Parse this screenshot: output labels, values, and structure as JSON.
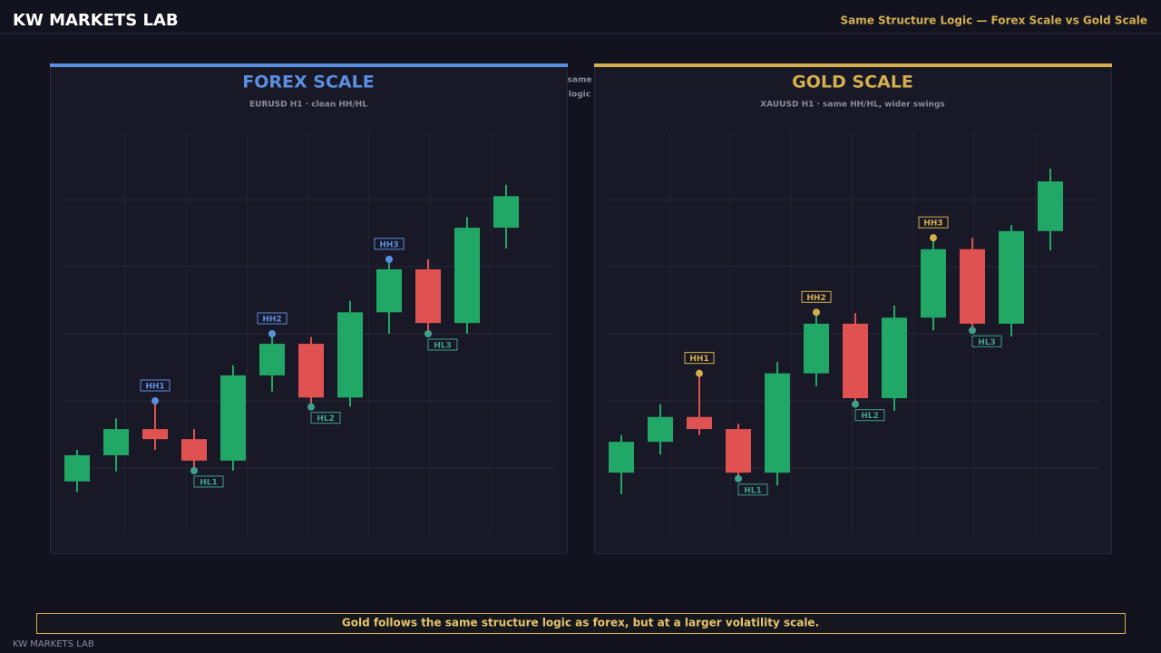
{
  "header": {
    "title": "KW MARKETS LAB",
    "subtitle": "Same Structure Logic — Forex Scale vs Gold Scale"
  },
  "connector": [
    "same",
    "logic"
  ],
  "footer": {
    "note": "Gold follows the same structure logic as forex, but at a larger volatility scale.",
    "brand": "KW MARKETS LAB"
  },
  "chart_data": [
    {
      "type": "candlestick",
      "title": "FOREX SCALE",
      "subtitle": "EURUSD H1 · clean HH/HL",
      "color": "#5b8ee0",
      "up_color": "#22a866",
      "down_color": "#e05252",
      "grid": true,
      "ylim": [
        0,
        6
      ],
      "yticks": [
        1,
        2,
        3,
        4,
        5
      ],
      "open": [
        0.8,
        1.19,
        1.58,
        1.43,
        1.11,
        2.38,
        2.85,
        2.05,
        3.32,
        3.96,
        3.16,
        4.58
      ],
      "high": [
        1.27,
        1.74,
        2.0,
        1.58,
        2.53,
        3.0,
        2.95,
        3.49,
        4.11,
        4.11,
        4.74,
        5.22
      ],
      "low": [
        0.64,
        0.95,
        1.27,
        0.96,
        0.96,
        2.14,
        1.91,
        1.91,
        3.0,
        3.0,
        3.0,
        4.27
      ],
      "close": [
        1.19,
        1.58,
        1.43,
        1.11,
        2.38,
        2.85,
        2.05,
        3.32,
        3.96,
        3.16,
        4.58,
        5.05
      ],
      "annotations": [
        {
          "label": "HH1",
          "index": 2,
          "at": "high"
        },
        {
          "label": "HL1",
          "index": 3,
          "at": "low"
        },
        {
          "label": "HH2",
          "index": 5,
          "at": "high"
        },
        {
          "label": "HL2",
          "index": 6,
          "at": "low"
        },
        {
          "label": "HH3",
          "index": 8,
          "at": "high"
        },
        {
          "label": "HL3",
          "index": 9,
          "at": "low"
        }
      ]
    },
    {
      "type": "candlestick",
      "title": "GOLD SCALE",
      "subtitle": "XAUUSD H1 · same HH/HL, wider swings",
      "color": "#d4af4f",
      "up_color": "#22a866",
      "down_color": "#e05252",
      "grid": true,
      "ylim": [
        0,
        6
      ],
      "yticks": [
        1,
        2,
        3,
        4,
        5
      ],
      "open": [
        0.93,
        1.39,
        1.76,
        1.58,
        0.93,
        2.41,
        3.15,
        2.04,
        3.24,
        4.26,
        3.15,
        4.53
      ],
      "high": [
        1.49,
        1.95,
        2.41,
        1.66,
        2.58,
        3.32,
        3.31,
        3.42,
        4.43,
        4.43,
        4.62,
        5.46
      ],
      "low": [
        0.61,
        1.2,
        1.49,
        0.84,
        0.74,
        2.22,
        1.95,
        1.85,
        3.05,
        3.05,
        2.96,
        4.24
      ],
      "close": [
        1.39,
        1.76,
        1.58,
        0.93,
        2.41,
        3.15,
        2.04,
        3.24,
        4.26,
        3.15,
        4.53,
        5.27
      ],
      "annotations": [
        {
          "label": "HH1",
          "index": 2,
          "at": "high"
        },
        {
          "label": "HL1",
          "index": 3,
          "at": "low"
        },
        {
          "label": "HH2",
          "index": 5,
          "at": "high"
        },
        {
          "label": "HL2",
          "index": 6,
          "at": "low"
        },
        {
          "label": "HH3",
          "index": 8,
          "at": "high"
        },
        {
          "label": "HL3",
          "index": 9,
          "at": "low"
        }
      ]
    }
  ]
}
